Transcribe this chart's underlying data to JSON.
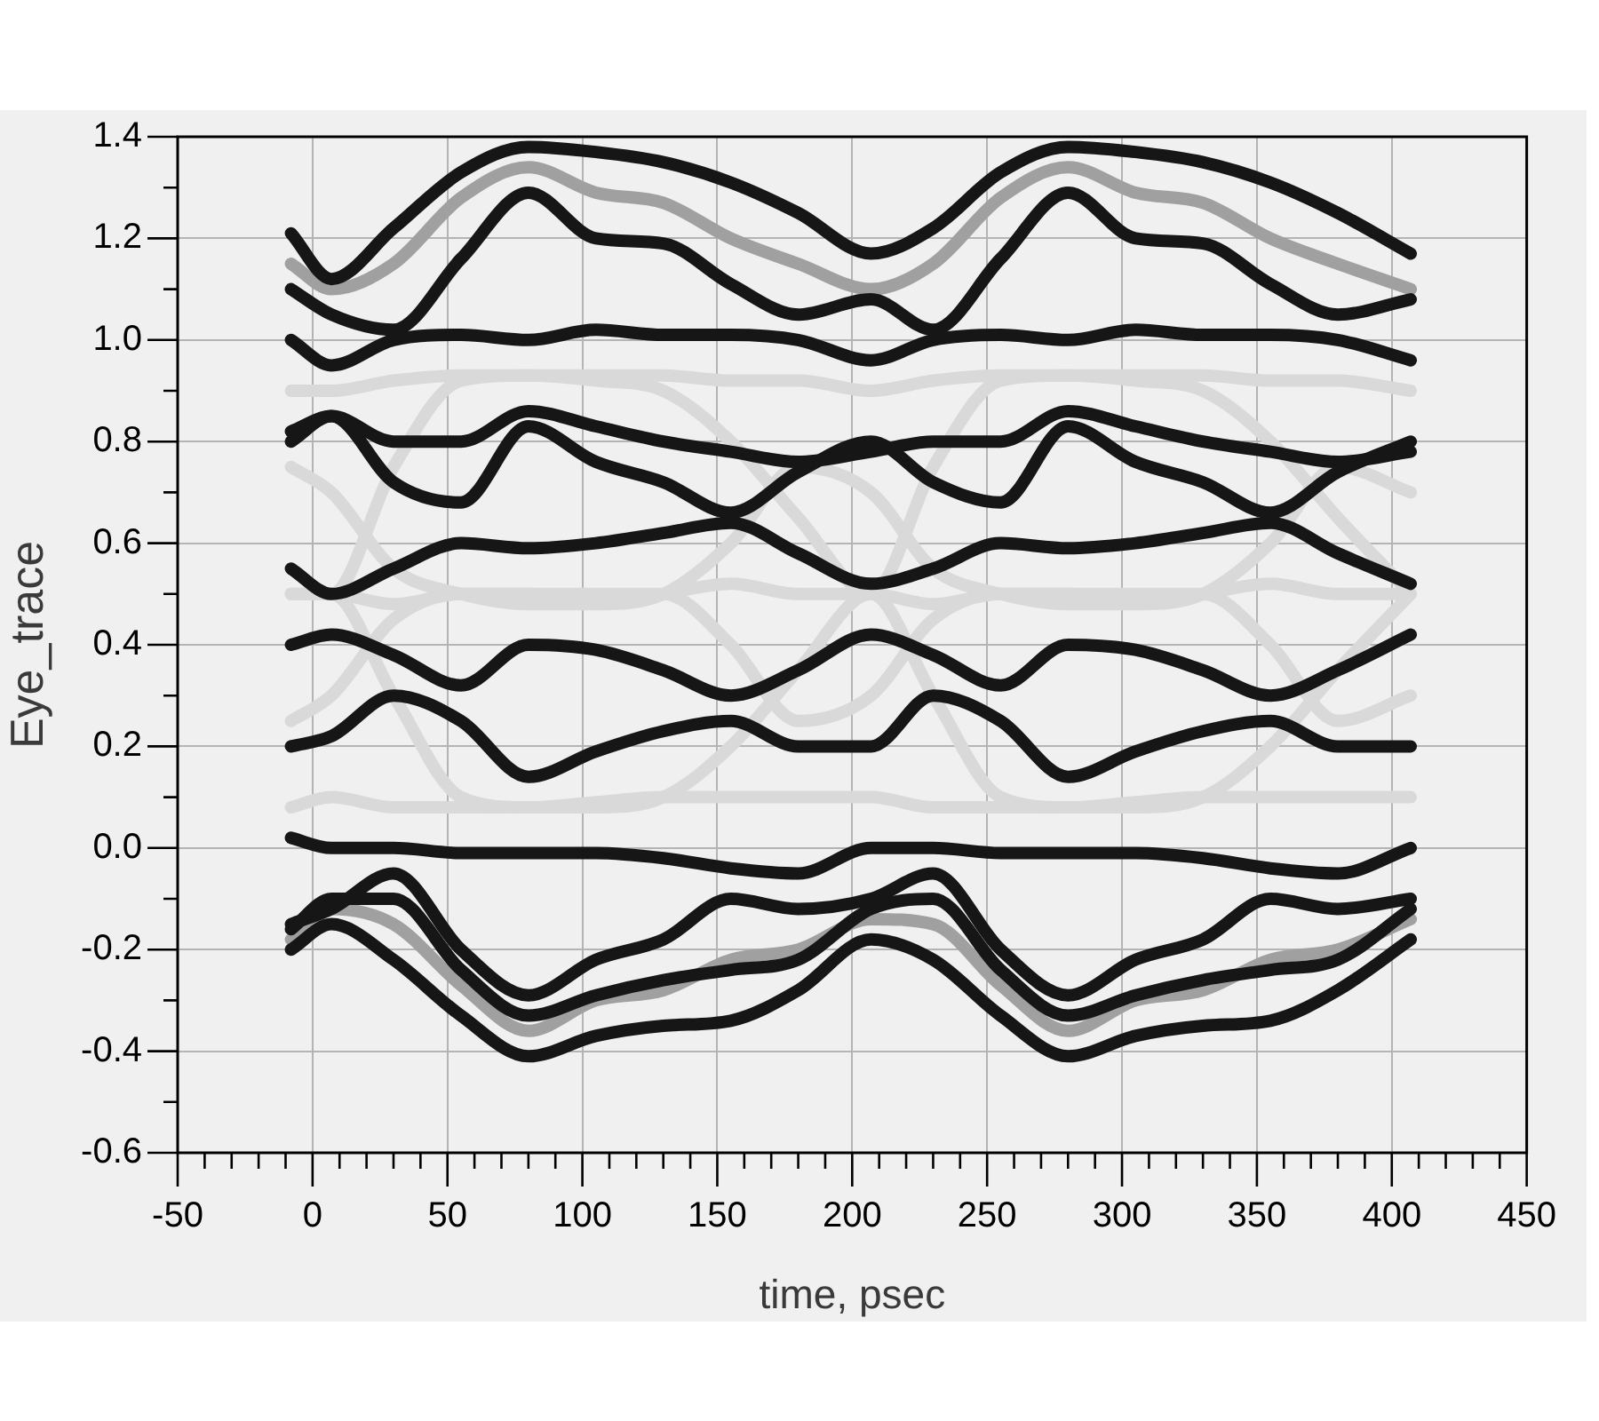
{
  "chart_data": {
    "type": "line",
    "xlabel": "time, psec",
    "ylabel": "Eye_trace",
    "xlim": [
      -50,
      450
    ],
    "ylim": [
      -0.6,
      1.4
    ],
    "xticks": [
      -50,
      {
        "value": -40,
        "label": null
      },
      {
        "value": -30,
        "label": null
      },
      {
        "value": -20,
        "label": null
      },
      {
        "value": -10,
        "label": null
      },
      0,
      {
        "value": 10,
        "label": null
      },
      {
        "value": 20,
        "label": null
      },
      {
        "value": 30,
        "label": null
      },
      {
        "value": 40,
        "label": null
      },
      50,
      {
        "value": 60,
        "label": null
      },
      {
        "value": 70,
        "label": null
      },
      {
        "value": 80,
        "label": null
      },
      {
        "value": 90,
        "label": null
      },
      100,
      {
        "value": 110,
        "label": null
      },
      {
        "value": 120,
        "label": null
      },
      {
        "value": 130,
        "label": null
      },
      {
        "value": 140,
        "label": null
      },
      150,
      {
        "value": 160,
        "label": null
      },
      {
        "value": 170,
        "label": null
      },
      {
        "value": 180,
        "label": null
      },
      {
        "value": 190,
        "label": null
      },
      200,
      {
        "value": 210,
        "label": null
      },
      {
        "value": 220,
        "label": null
      },
      {
        "value": 230,
        "label": null
      },
      {
        "value": 240,
        "label": null
      },
      250,
      {
        "value": 260,
        "label": null
      },
      {
        "value": 270,
        "label": null
      },
      {
        "value": 280,
        "label": null
      },
      {
        "value": 290,
        "label": null
      },
      300,
      {
        "value": 310,
        "label": null
      },
      {
        "value": 320,
        "label": null
      },
      {
        "value": 330,
        "label": null
      },
      {
        "value": 340,
        "label": null
      },
      350,
      {
        "value": 360,
        "label": null
      },
      {
        "value": 370,
        "label": null
      },
      {
        "value": 380,
        "label": null
      },
      {
        "value": 390,
        "label": null
      },
      400,
      {
        "value": 410,
        "label": null
      },
      {
        "value": 420,
        "label": null
      },
      {
        "value": 430,
        "label": null
      },
      {
        "value": 440,
        "label": null
      },
      450
    ],
    "yticks": [
      -0.6,
      {
        "value": -0.5,
        "label": null
      },
      -0.4,
      {
        "value": -0.3,
        "label": null
      },
      -0.2,
      {
        "value": -0.1,
        "label": null
      },
      {
        "value": 0,
        "label": "0.0"
      },
      {
        "value": 0.1,
        "label": null
      },
      0.2,
      {
        "value": 0.3,
        "label": null
      },
      0.4,
      {
        "value": 0.5,
        "label": null
      },
      0.6,
      {
        "value": 0.7,
        "label": null
      },
      0.8,
      {
        "value": 0.9,
        "label": null
      },
      {
        "value": 1,
        "label": "1.0"
      },
      {
        "value": 1.1,
        "label": null
      },
      1.2,
      {
        "value": 1.3,
        "label": null
      },
      1.4
    ],
    "grid": true,
    "legend": false,
    "marker": "none",
    "x": [
      -8,
      7,
      30,
      55,
      80,
      105,
      130,
      155,
      180,
      207,
      230,
      255,
      280,
      305,
      330,
      355,
      380,
      407
    ],
    "series": [
      {
        "color": "#d9d9d9",
        "values": [
          0.9,
          0.9,
          0.92,
          0.93,
          0.93,
          0.93,
          0.93,
          0.92,
          0.92,
          0.9,
          0.92,
          0.93,
          0.93,
          0.93,
          0.93,
          0.92,
          0.92,
          0.9
        ]
      },
      {
        "color": "#d9d9d9",
        "values": [
          0.5,
          0.5,
          0.48,
          0.5,
          0.5,
          0.48,
          0.5,
          0.52,
          0.5,
          0.5,
          0.48,
          0.5,
          0.5,
          0.48,
          0.5,
          0.52,
          0.5,
          0.5
        ]
      },
      {
        "color": "#d9d9d9",
        "values": [
          0.08,
          0.1,
          0.08,
          0.08,
          0.08,
          0.09,
          0.1,
          0.1,
          0.1,
          0.1,
          0.08,
          0.08,
          0.08,
          0.09,
          0.1,
          0.1,
          0.1,
          0.1
        ]
      },
      {
        "color": "#d9d9d9",
        "values": [
          0.5,
          0.5,
          0.75,
          0.92,
          0.93,
          0.92,
          0.9,
          0.8,
          0.65,
          0.5,
          0.75,
          0.92,
          0.93,
          0.92,
          0.9,
          0.8,
          0.65,
          0.5
        ]
      },
      {
        "color": "#d9d9d9",
        "values": [
          0.5,
          0.5,
          0.3,
          0.1,
          0.08,
          0.08,
          0.1,
          0.2,
          0.35,
          0.5,
          0.3,
          0.1,
          0.08,
          0.08,
          0.1,
          0.2,
          0.35,
          0.5
        ]
      },
      {
        "color": "#d9d9d9",
        "values": [
          0.75,
          0.7,
          0.55,
          0.5,
          0.48,
          0.48,
          0.5,
          0.6,
          0.75,
          0.7,
          0.55,
          0.5,
          0.48,
          0.48,
          0.5,
          0.6,
          0.75,
          0.7
        ]
      },
      {
        "color": "#d9d9d9",
        "values": [
          0.25,
          0.3,
          0.45,
          0.5,
          0.5,
          0.5,
          0.5,
          0.4,
          0.25,
          0.3,
          0.45,
          0.5,
          0.5,
          0.5,
          0.5,
          0.4,
          0.25,
          0.3
        ]
      },
      {
        "color": "#a0a0a0",
        "values": [
          1.15,
          1.1,
          1.15,
          1.28,
          1.34,
          1.29,
          1.27,
          1.2,
          1.15,
          1.1,
          1.15,
          1.28,
          1.34,
          1.29,
          1.27,
          1.2,
          1.15,
          1.1
        ]
      },
      {
        "color": "#a0a0a0",
        "values": [
          -0.18,
          -0.12,
          -0.15,
          -0.27,
          -0.36,
          -0.3,
          -0.28,
          -0.22,
          -0.2,
          -0.14,
          -0.15,
          -0.27,
          -0.36,
          -0.3,
          -0.28,
          -0.22,
          -0.2,
          -0.14
        ]
      },
      {
        "color": "#161616",
        "values": [
          1.21,
          1.12,
          1.22,
          1.33,
          1.38,
          1.37,
          1.35,
          1.31,
          1.25,
          1.17,
          1.22,
          1.33,
          1.38,
          1.37,
          1.35,
          1.31,
          1.25,
          1.17
        ]
      },
      {
        "color": "#161616",
        "values": [
          1.1,
          1.05,
          1.02,
          1.16,
          1.29,
          1.2,
          1.19,
          1.11,
          1.05,
          1.08,
          1.02,
          1.16,
          1.29,
          1.2,
          1.19,
          1.11,
          1.05,
          1.08
        ]
      },
      {
        "color": "#161616",
        "values": [
          1.0,
          0.95,
          1.0,
          1.01,
          1.0,
          1.02,
          1.01,
          1.01,
          1.0,
          0.96,
          1.0,
          1.01,
          1.0,
          1.02,
          1.01,
          1.01,
          1.0,
          0.96
        ]
      },
      {
        "color": "#161616",
        "values": [
          0.82,
          0.85,
          0.72,
          0.68,
          0.83,
          0.76,
          0.72,
          0.66,
          0.74,
          0.8,
          0.72,
          0.68,
          0.83,
          0.76,
          0.72,
          0.66,
          0.74,
          0.8
        ]
      },
      {
        "color": "#161616",
        "values": [
          0.8,
          0.85,
          0.8,
          0.8,
          0.86,
          0.83,
          0.8,
          0.78,
          0.76,
          0.78,
          0.8,
          0.8,
          0.86,
          0.83,
          0.8,
          0.78,
          0.76,
          0.78
        ]
      },
      {
        "color": "#161616",
        "values": [
          0.55,
          0.5,
          0.55,
          0.6,
          0.59,
          0.6,
          0.62,
          0.64,
          0.58,
          0.52,
          0.55,
          0.6,
          0.59,
          0.6,
          0.62,
          0.64,
          0.58,
          0.52
        ]
      },
      {
        "color": "#161616",
        "values": [
          0.4,
          0.42,
          0.38,
          0.32,
          0.4,
          0.39,
          0.35,
          0.3,
          0.35,
          0.42,
          0.38,
          0.32,
          0.4,
          0.39,
          0.35,
          0.3,
          0.35,
          0.42
        ]
      },
      {
        "color": "#161616",
        "values": [
          0.2,
          0.22,
          0.3,
          0.25,
          0.14,
          0.19,
          0.23,
          0.25,
          0.2,
          0.2,
          0.3,
          0.25,
          0.14,
          0.19,
          0.23,
          0.25,
          0.2,
          0.2
        ]
      },
      {
        "color": "#161616",
        "values": [
          0.02,
          0.0,
          0.0,
          -0.01,
          -0.01,
          -0.01,
          -0.02,
          -0.04,
          -0.05,
          0.0,
          0.0,
          -0.01,
          -0.01,
          -0.01,
          -0.02,
          -0.04,
          -0.05,
          0.0
        ]
      },
      {
        "color": "#161616",
        "values": [
          -0.15,
          -0.12,
          -0.05,
          -0.2,
          -0.29,
          -0.22,
          -0.18,
          -0.1,
          -0.12,
          -0.1,
          -0.05,
          -0.2,
          -0.29,
          -0.22,
          -0.18,
          -0.1,
          -0.12,
          -0.1
        ]
      },
      {
        "color": "#161616",
        "values": [
          -0.2,
          -0.15,
          -0.22,
          -0.33,
          -0.41,
          -0.37,
          -0.35,
          -0.34,
          -0.28,
          -0.18,
          -0.22,
          -0.33,
          -0.41,
          -0.37,
          -0.35,
          -0.34,
          -0.28,
          -0.18
        ]
      },
      {
        "color": "#161616",
        "values": [
          -0.16,
          -0.1,
          -0.1,
          -0.24,
          -0.33,
          -0.29,
          -0.26,
          -0.24,
          -0.22,
          -0.12,
          -0.1,
          -0.24,
          -0.33,
          -0.29,
          -0.26,
          -0.24,
          -0.22,
          -0.12
        ]
      }
    ]
  }
}
